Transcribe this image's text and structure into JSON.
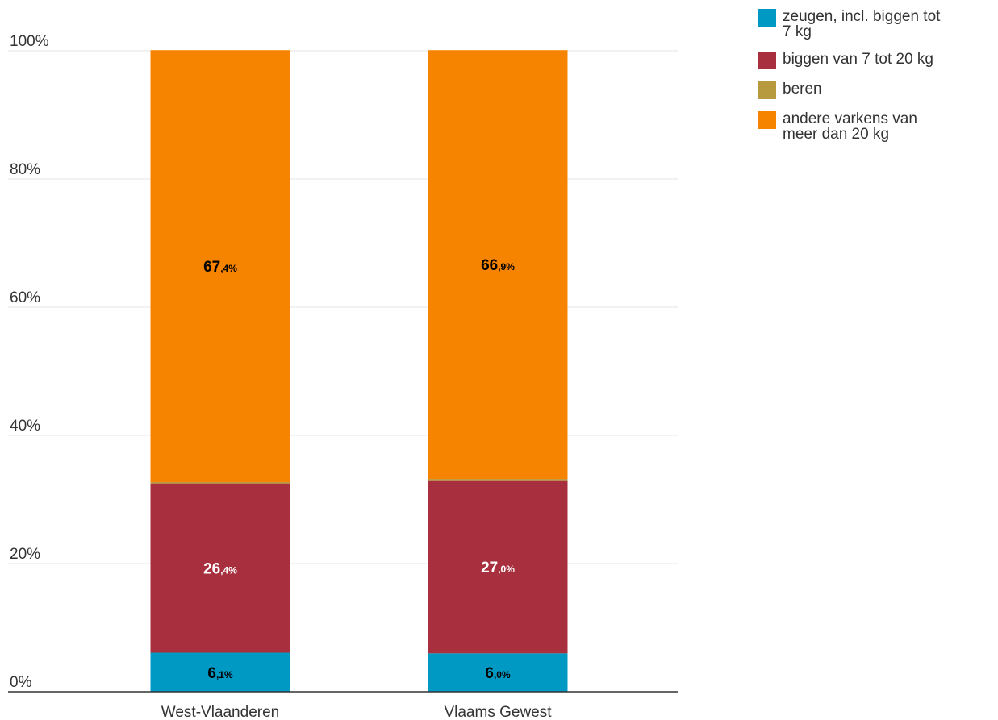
{
  "chart_data": {
    "type": "bar",
    "stacked": true,
    "categories": [
      "West-Vlaanderen",
      "Vlaams Gewest"
    ],
    "series": [
      {
        "name": "zeugen, incl. biggen tot 7 kg",
        "color": "#0099c4",
        "values": [
          6.1,
          6.0
        ],
        "labels": [
          [
            "6",
            ",1%"
          ],
          [
            "6",
            ",0%"
          ]
        ],
        "label_color": "#000000"
      },
      {
        "name": "biggen van 7 tot 20 kg",
        "color": "#a82f3e",
        "values": [
          26.4,
          27.0
        ],
        "labels": [
          [
            "26",
            ",4%"
          ],
          [
            "27",
            ",0%"
          ]
        ],
        "label_color": "#ffffff"
      },
      {
        "name": "beren",
        "color": "#b89a3e",
        "values": [
          0.2,
          0.2
        ],
        "labels": [
          null,
          null
        ],
        "label_color": "#000000"
      },
      {
        "name": "andere varkens van meer dan 20 kg",
        "color": "#f78400",
        "values": [
          67.4,
          66.9
        ],
        "labels": [
          [
            "67",
            ",4%"
          ],
          [
            "66",
            ",9%"
          ]
        ],
        "label_color": "#000000"
      }
    ],
    "y_ticks": [
      0,
      20,
      40,
      60,
      80,
      100
    ],
    "y_tick_labels": [
      "0%",
      "20%",
      "40%",
      "60%",
      "80%",
      "100%"
    ],
    "ylim": [
      0,
      100
    ],
    "grid": true,
    "legend_position": "top-right",
    "legend": [
      {
        "lines": [
          "zeugen, incl. biggen tot",
          "7 kg"
        ]
      },
      {
        "lines": [
          "biggen van 7 tot 20 kg"
        ]
      },
      {
        "lines": [
          "beren"
        ]
      },
      {
        "lines": [
          "andere varkens van",
          "meer dan 20 kg"
        ]
      }
    ]
  }
}
